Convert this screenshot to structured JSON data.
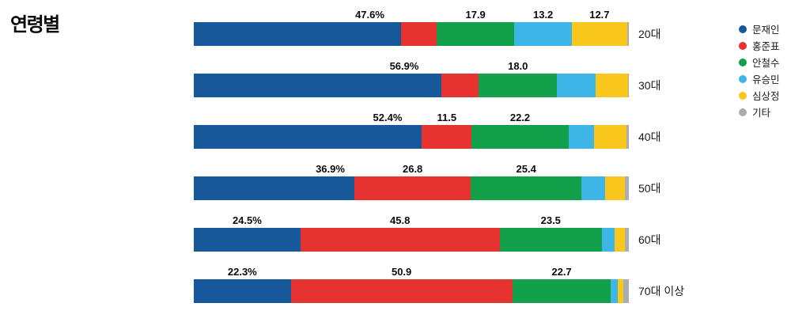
{
  "title": "연령별",
  "chart_data": {
    "type": "bar",
    "stacked": true,
    "orientation": "horizontal",
    "unit": "%",
    "xlim": [
      0,
      100
    ],
    "title": "연령별",
    "legend_position": "right",
    "categories": [
      "20대",
      "30대",
      "40대",
      "50대",
      "60대",
      "70대 이상"
    ],
    "series": [
      {
        "name": "문재인",
        "color": "#17589b",
        "values": [
          47.6,
          56.9,
          52.4,
          36.9,
          24.5,
          22.3
        ]
      },
      {
        "name": "홍준표",
        "color": "#e6332f",
        "values": [
          8.2,
          8.6,
          11.5,
          26.8,
          45.8,
          50.9
        ]
      },
      {
        "name": "안철수",
        "color": "#13a04b",
        "values": [
          17.9,
          18.0,
          22.2,
          25.4,
          23.5,
          22.7
        ]
      },
      {
        "name": "유승민",
        "color": "#3eb5e7",
        "values": [
          13.2,
          8.9,
          5.9,
          5.5,
          2.9,
          1.6
        ]
      },
      {
        "name": "심상정",
        "color": "#f9c71c",
        "values": [
          12.7,
          7.4,
          7.4,
          4.5,
          2.4,
          1.3
        ]
      },
      {
        "name": "기타",
        "color": "#aaacae",
        "values": [
          0.4,
          0.2,
          0.6,
          0.9,
          0.9,
          1.2
        ]
      }
    ],
    "data_labels": [
      [
        "47.6%",
        null,
        "17.9",
        "13.2",
        "12.7",
        null
      ],
      [
        "56.9%",
        null,
        "18.0",
        null,
        null,
        null
      ],
      [
        "52.4%",
        "11.5",
        "22.2",
        null,
        null,
        null
      ],
      [
        "36.9%",
        "26.8",
        "25.4",
        null,
        null,
        null
      ],
      [
        "24.5%",
        "45.8",
        "23.5",
        null,
        null,
        null
      ],
      [
        "22.3%",
        "50.9",
        "22.7",
        null,
        null,
        null
      ]
    ]
  }
}
